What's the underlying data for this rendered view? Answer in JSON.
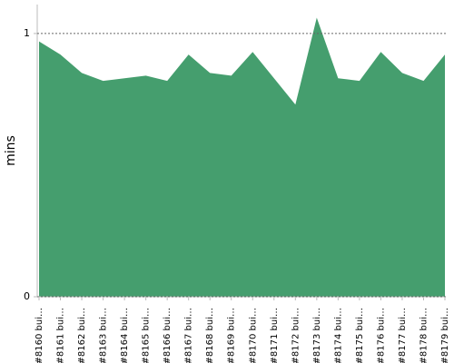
{
  "chart_data": {
    "type": "area",
    "y_label": "mins",
    "categories": [
      "#8160 bui…",
      "#8161 bui…",
      "#8162 bui…",
      "#8163 bui…",
      "#8164 bui…",
      "#8165 bui…",
      "#8166 bui…",
      "#8167 bui…",
      "#8168 bui…",
      "#8169 bui…",
      "#8170 bui…",
      "#8171 bui…",
      "#8172 bui…",
      "#8173 bui…",
      "#8174 bui…",
      "#8175 bui…",
      "#8176 bui…",
      "#8177 bui…",
      "#8178 bui…",
      "#8179 bui…"
    ],
    "values": [
      0.97,
      0.92,
      0.85,
      0.82,
      0.83,
      0.84,
      0.82,
      0.92,
      0.85,
      0.84,
      0.93,
      0.83,
      0.73,
      1.06,
      0.83,
      0.82,
      0.93,
      0.85,
      0.82,
      0.92
    ],
    "color": "#459e6e",
    "ylim": [
      0,
      1.11
    ],
    "yticks": [
      0,
      1
    ],
    "grid": true
  }
}
